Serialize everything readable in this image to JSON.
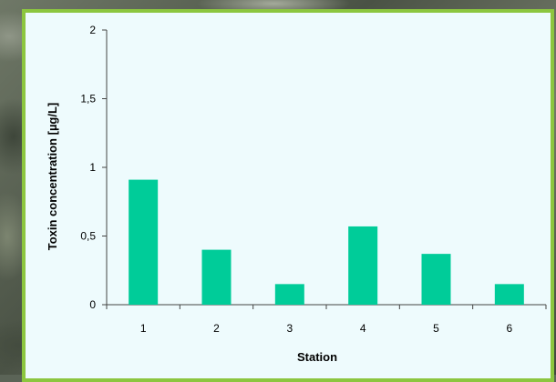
{
  "chart_data": {
    "type": "bar",
    "categories": [
      "1",
      "2",
      "3",
      "4",
      "5",
      "6"
    ],
    "values": [
      0.91,
      0.4,
      0.15,
      0.57,
      0.37,
      0.15
    ],
    "xlabel": "Station",
    "ylabel": "Toxin concentration [µg/L]",
    "ylim": [
      0,
      2
    ],
    "yticks": [
      "0",
      "0,5",
      "1",
      "1,5",
      "2"
    ],
    "ytick_values": [
      0,
      0.5,
      1,
      1.5,
      2
    ],
    "bar_color": "#00cc99",
    "grid": false
  }
}
